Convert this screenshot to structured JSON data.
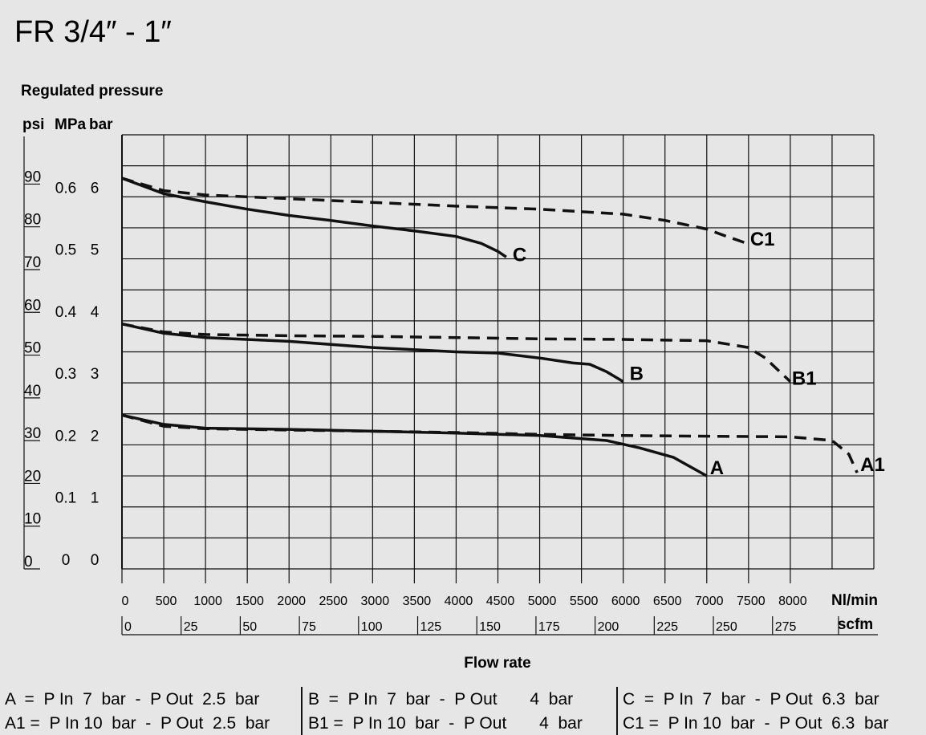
{
  "title": "FR 3/4″ - 1″",
  "chart_data": {
    "type": "line",
    "ylabel": "Regulated pressure",
    "xlabel": "Flow rate",
    "y_unit_labels": [
      "psi",
      "MPa",
      "bar"
    ],
    "x_unit_primary": "Nl/min",
    "x_unit_secondary": "scfm",
    "xlim": [
      0,
      9000
    ],
    "ylim_bar": [
      0,
      7
    ],
    "grid": true,
    "x_ticks_nlmin": [
      "0",
      "500",
      "1000",
      "1500",
      "2000",
      "2500",
      "3000",
      "3500",
      "4000",
      "4500",
      "5000",
      "5500",
      "6000",
      "6500",
      "7000",
      "7500",
      "8000"
    ],
    "x_ticks_scfm": [
      "0",
      "25",
      "50",
      "75",
      "100",
      "125",
      "150",
      "175",
      "200",
      "225",
      "250",
      "275"
    ],
    "y_ticks_bar": [
      "0",
      "1",
      "2",
      "3",
      "4",
      "5",
      "6"
    ],
    "y_ticks_mpa": [
      "0",
      "0.1",
      "0.2",
      "0.3",
      "0.4",
      "0.5",
      "0.6"
    ],
    "y_ticks_psi": [
      "0",
      "10",
      "20",
      "30",
      "40",
      "50",
      "60",
      "70",
      "80",
      "90"
    ],
    "series": [
      {
        "name": "C",
        "style": "solid",
        "x": [
          0,
          500,
          1000,
          1500,
          2000,
          2500,
          3000,
          3500,
          4000,
          4300,
          4500,
          4600
        ],
        "y": [
          6.3,
          6.05,
          5.92,
          5.8,
          5.7,
          5.62,
          5.53,
          5.45,
          5.36,
          5.25,
          5.12,
          5.03
        ]
      },
      {
        "name": "C1",
        "style": "dashed",
        "x": [
          0,
          500,
          1000,
          2000,
          3000,
          4000,
          5000,
          6000,
          6500,
          7000,
          7200,
          7500
        ],
        "y": [
          6.3,
          6.1,
          6.03,
          5.97,
          5.91,
          5.85,
          5.8,
          5.72,
          5.62,
          5.48,
          5.38,
          5.24
        ]
      },
      {
        "name": "B",
        "style": "solid",
        "x": [
          0,
          500,
          1000,
          2000,
          3000,
          4000,
          4500,
          5000,
          5400,
          5600,
          5800,
          6000
        ],
        "y": [
          3.95,
          3.8,
          3.73,
          3.67,
          3.57,
          3.5,
          3.48,
          3.4,
          3.32,
          3.3,
          3.18,
          3.02
        ]
      },
      {
        "name": "B1",
        "style": "dashed",
        "x": [
          0,
          500,
          1000,
          2000,
          3000,
          4000,
          5000,
          6000,
          7000,
          7500,
          7700,
          8000
        ],
        "y": [
          3.95,
          3.82,
          3.78,
          3.76,
          3.75,
          3.73,
          3.71,
          3.7,
          3.68,
          3.57,
          3.4,
          3.02
        ]
      },
      {
        "name": "A",
        "style": "solid",
        "x": [
          0,
          500,
          1000,
          2000,
          3000,
          4000,
          5000,
          5800,
          6200,
          6600,
          7000
        ],
        "y": [
          2.48,
          2.33,
          2.27,
          2.25,
          2.22,
          2.19,
          2.15,
          2.07,
          1.95,
          1.8,
          1.5
        ]
      },
      {
        "name": "A1",
        "style": "dashed",
        "x": [
          0,
          500,
          1000,
          2000,
          3000,
          4000,
          5000,
          6000,
          7000,
          8000,
          8500,
          8700,
          8800
        ],
        "y": [
          2.48,
          2.3,
          2.26,
          2.24,
          2.22,
          2.2,
          2.17,
          2.15,
          2.14,
          2.13,
          2.07,
          1.85,
          1.55
        ]
      }
    ]
  },
  "legend": [
    [
      "A  =  P In  7  bar  -  P Out  2.5  bar",
      "B  =  P In  7  bar  -  P Out       4  bar",
      "C  =  P In  7  bar  -  P Out  6.3  bar"
    ],
    [
      "A1 =  P In 10  bar  -  P Out  2.5  bar",
      "B1 =  P In 10  bar  -  P Out       4  bar",
      "C1 =  P In 10  bar  -  P Out  6.3  bar"
    ]
  ]
}
